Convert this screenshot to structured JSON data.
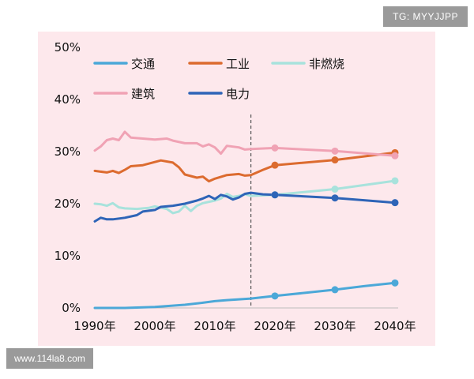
{
  "watermarks": {
    "top_right": "TG: MYYJJPP",
    "bottom_left": "www.114la8.com"
  },
  "chart_data": {
    "type": "line",
    "title": "",
    "xlabel": "",
    "ylabel": "",
    "xlim": [
      1990,
      2040
    ],
    "ylim": [
      0,
      50
    ],
    "y_ticks": [
      "0%",
      "10%",
      "20%",
      "30%",
      "40%",
      "50%"
    ],
    "x_ticks": [
      "1990年",
      "2000年",
      "2010年",
      "2020年",
      "2030年",
      "2040年"
    ],
    "divider_year": 2016,
    "grid": false,
    "legend_position": "top-left",
    "series": [
      {
        "name": "交通",
        "color": "#4ba8d8",
        "values": [
          [
            1990,
            0
          ],
          [
            1995,
            0
          ],
          [
            2000,
            0.2
          ],
          [
            2005,
            0.6
          ],
          [
            2008,
            1.0
          ],
          [
            2010,
            1.3
          ],
          [
            2012,
            1.5
          ],
          [
            2016,
            1.8
          ],
          [
            2020,
            2.3
          ],
          [
            2025,
            2.9
          ],
          [
            2030,
            3.5
          ],
          [
            2035,
            4.2
          ],
          [
            2040,
            4.8
          ]
        ],
        "markers": [
          [
            2020,
            2.3
          ],
          [
            2030,
            3.5
          ],
          [
            2040,
            4.8
          ]
        ]
      },
      {
        "name": "工业",
        "color": "#dc6b2f",
        "values": [
          [
            1990,
            26.3
          ],
          [
            1992,
            26.0
          ],
          [
            1993,
            26.3
          ],
          [
            1994,
            25.9
          ],
          [
            1995,
            26.5
          ],
          [
            1996,
            27.2
          ],
          [
            1998,
            27.4
          ],
          [
            2000,
            28.0
          ],
          [
            2001,
            28.3
          ],
          [
            2003,
            27.9
          ],
          [
            2004,
            27.0
          ],
          [
            2005,
            25.6
          ],
          [
            2007,
            25.0
          ],
          [
            2008,
            25.2
          ],
          [
            2009,
            24.3
          ],
          [
            2010,
            24.8
          ],
          [
            2012,
            25.5
          ],
          [
            2014,
            25.7
          ],
          [
            2015,
            25.4
          ],
          [
            2016,
            25.5
          ],
          [
            2018,
            26.5
          ],
          [
            2020,
            27.4
          ],
          [
            2030,
            28.4
          ],
          [
            2040,
            29.8
          ]
        ],
        "markers": [
          [
            2020,
            27.4
          ],
          [
            2030,
            28.4
          ],
          [
            2040,
            29.8
          ]
        ]
      },
      {
        "name": "非燃烧",
        "color": "#a8e2dc",
        "values": [
          [
            1990,
            20.0
          ],
          [
            1991,
            19.9
          ],
          [
            1992,
            19.6
          ],
          [
            1993,
            20.1
          ],
          [
            1994,
            19.3
          ],
          [
            1995,
            19.1
          ],
          [
            1997,
            19.0
          ],
          [
            1999,
            19.2
          ],
          [
            2000,
            19.5
          ],
          [
            2002,
            19.0
          ],
          [
            2003,
            18.2
          ],
          [
            2004,
            18.5
          ],
          [
            2005,
            19.6
          ],
          [
            2006,
            18.6
          ],
          [
            2007,
            19.6
          ],
          [
            2008,
            20.1
          ],
          [
            2010,
            20.6
          ],
          [
            2011,
            21.0
          ],
          [
            2012,
            21.9
          ],
          [
            2013,
            21.3
          ],
          [
            2014,
            21.5
          ],
          [
            2015,
            21.8
          ],
          [
            2016,
            21.5
          ],
          [
            2020,
            21.7
          ],
          [
            2030,
            22.8
          ],
          [
            2040,
            24.4
          ]
        ],
        "markers": [
          [
            2020,
            21.7
          ],
          [
            2030,
            22.8
          ],
          [
            2040,
            24.4
          ]
        ]
      },
      {
        "name": "建筑",
        "color": "#f0a2b4",
        "values": [
          [
            1990,
            30.2
          ],
          [
            1991,
            31.0
          ],
          [
            1992,
            32.2
          ],
          [
            1993,
            32.5
          ],
          [
            1994,
            32.2
          ],
          [
            1995,
            33.8
          ],
          [
            1996,
            32.7
          ],
          [
            1998,
            32.5
          ],
          [
            2000,
            32.3
          ],
          [
            2002,
            32.5
          ],
          [
            2003,
            32.1
          ],
          [
            2005,
            31.6
          ],
          [
            2007,
            31.6
          ],
          [
            2008,
            31.0
          ],
          [
            2009,
            31.4
          ],
          [
            2010,
            30.8
          ],
          [
            2011,
            29.6
          ],
          [
            2012,
            31.1
          ],
          [
            2014,
            30.8
          ],
          [
            2015,
            30.4
          ],
          [
            2016,
            30.5
          ],
          [
            2020,
            30.7
          ],
          [
            2030,
            30.1
          ],
          [
            2040,
            29.2
          ]
        ],
        "markers": [
          [
            2020,
            30.7
          ],
          [
            2030,
            30.1
          ],
          [
            2040,
            29.2
          ]
        ]
      },
      {
        "name": "电力",
        "color": "#2e64b7",
        "values": [
          [
            1990,
            16.6
          ],
          [
            1991,
            17.3
          ],
          [
            1992,
            17.0
          ],
          [
            1993,
            17.0
          ],
          [
            1995,
            17.3
          ],
          [
            1997,
            17.8
          ],
          [
            1998,
            18.5
          ],
          [
            2000,
            18.8
          ],
          [
            2001,
            19.4
          ],
          [
            2003,
            19.6
          ],
          [
            2005,
            20.0
          ],
          [
            2007,
            20.6
          ],
          [
            2008,
            21.0
          ],
          [
            2009,
            21.5
          ],
          [
            2010,
            20.9
          ],
          [
            2011,
            21.7
          ],
          [
            2012,
            21.4
          ],
          [
            2013,
            20.8
          ],
          [
            2014,
            21.2
          ],
          [
            2015,
            21.9
          ],
          [
            2016,
            22.1
          ],
          [
            2018,
            21.8
          ],
          [
            2020,
            21.7
          ],
          [
            2030,
            21.1
          ],
          [
            2040,
            20.2
          ]
        ],
        "markers": [
          [
            2020,
            21.7
          ],
          [
            2030,
            21.1
          ],
          [
            2040,
            20.2
          ]
        ]
      }
    ]
  }
}
